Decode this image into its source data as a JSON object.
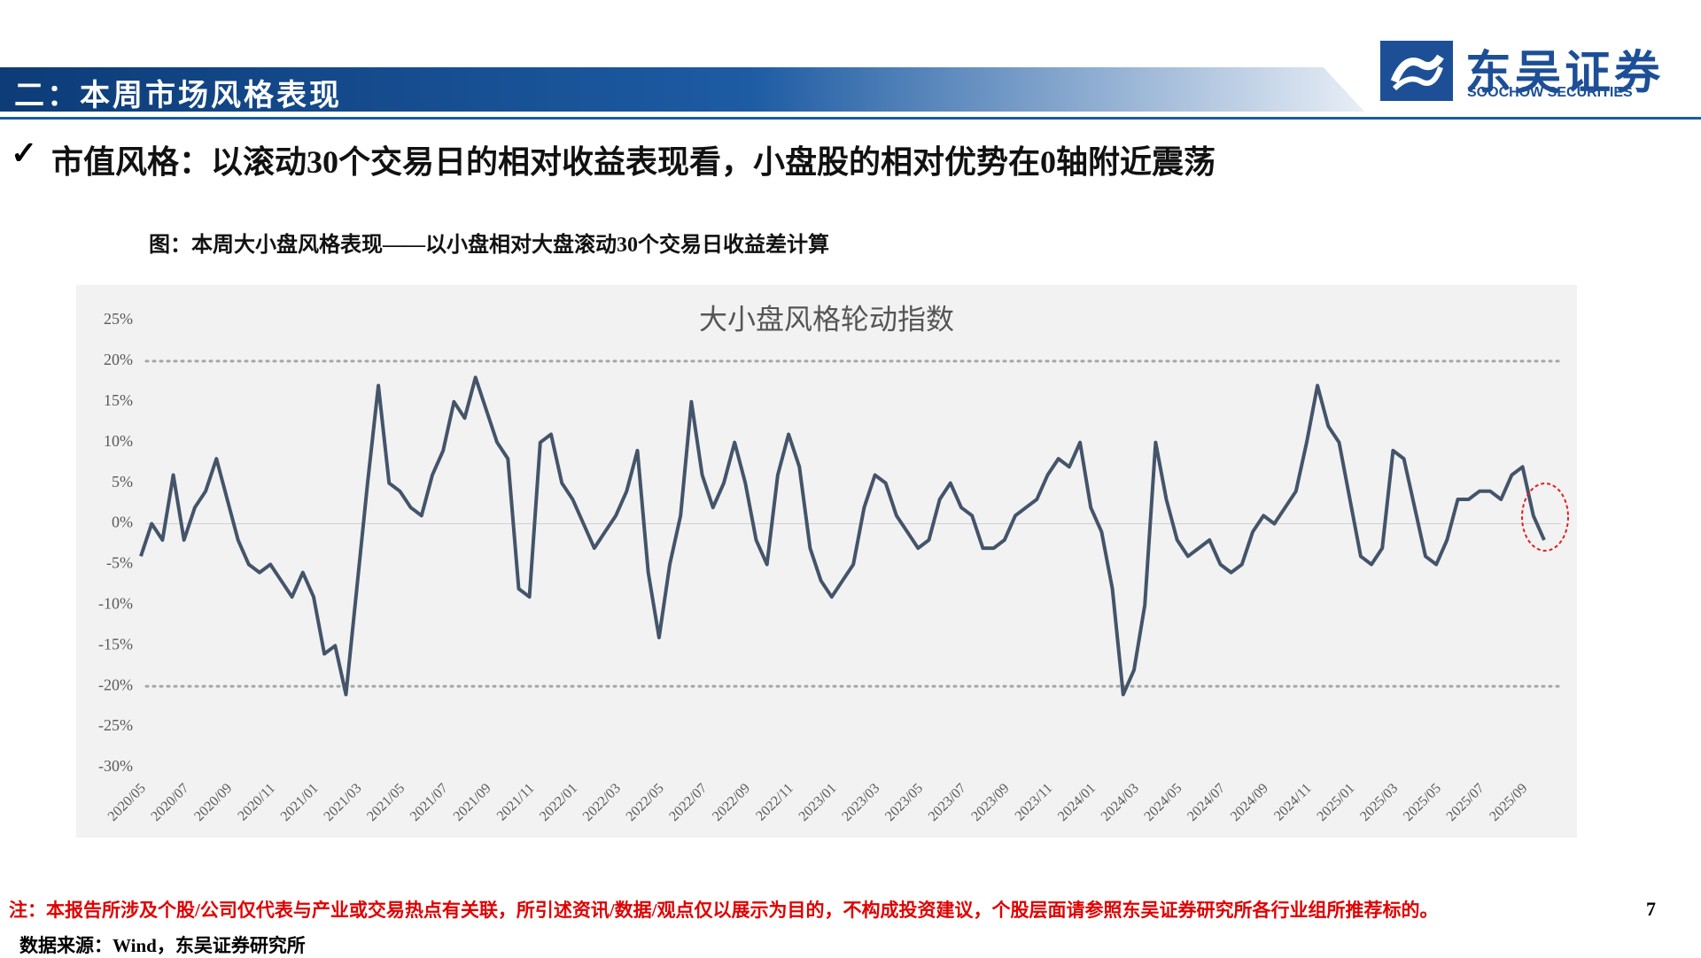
{
  "header": {
    "title": "二：本周市场风格表现",
    "logo_cn": "东吴证券",
    "logo_en": "SOOCHOW SECURITIES"
  },
  "heading": "市值风格：以滚动30个交易日的相对收益表现看，小盘股的相对优势在0轴附近震荡",
  "caption": "图：本周大小盘风格表现——以小盘相对大盘滚动30个交易日收益差计算",
  "chart_data": {
    "type": "line",
    "title": "大小盘风格轮动指数",
    "categories": [
      "2020/05",
      null,
      null,
      null,
      "2020/07",
      null,
      null,
      null,
      "2020/09",
      null,
      null,
      null,
      "2020/11",
      null,
      null,
      null,
      "2021/01",
      null,
      null,
      null,
      "2021/03",
      null,
      null,
      null,
      "2021/05",
      null,
      null,
      null,
      "2021/07",
      null,
      null,
      null,
      "2021/09",
      null,
      null,
      null,
      "2021/11",
      null,
      null,
      null,
      "2022/01",
      null,
      null,
      null,
      "2022/03",
      null,
      null,
      null,
      "2022/05",
      null,
      null,
      null,
      "2022/07",
      null,
      null,
      null,
      "2022/09",
      null,
      null,
      null,
      "2022/11",
      null,
      null,
      null,
      "2023/01",
      null,
      null,
      null,
      "2023/03",
      null,
      null,
      null,
      "2023/05",
      null,
      null,
      null,
      "2023/07",
      null,
      null,
      null,
      "2023/09",
      null,
      null,
      null,
      "2023/11",
      null,
      null,
      null,
      "2024/01",
      null,
      null,
      null,
      "2024/03",
      null,
      null,
      null,
      "2024/05",
      null,
      null,
      null,
      "2024/07",
      null,
      null,
      null,
      "2024/09",
      null,
      null,
      null,
      "2024/11",
      null,
      null,
      null,
      "2025/01",
      null,
      null,
      null,
      "2025/03",
      null,
      null,
      null,
      "2025/05",
      null,
      null,
      null,
      "2025/07",
      null,
      null,
      null,
      "2025/09",
      null,
      null
    ],
    "series": [
      {
        "color": "#44546a",
        "values": [
          -4,
          0,
          -2,
          6,
          -2,
          2,
          4,
          8,
          3,
          -2,
          -5,
          -6,
          -5,
          -7,
          -9,
          -6,
          -9,
          -16,
          -15,
          -21,
          -8,
          5,
          17,
          5,
          4,
          2,
          1,
          6,
          9,
          15,
          13,
          18,
          14,
          10,
          8,
          -8,
          -9,
          10,
          11,
          5,
          3,
          0,
          -3,
          -1,
          1,
          4,
          9,
          -6,
          -14,
          -5,
          1,
          15,
          6,
          2,
          5,
          10,
          5,
          -2,
          -5,
          6,
          11,
          7,
          -3,
          -7,
          -9,
          -7,
          -5,
          2,
          6,
          5,
          1,
          -1,
          -3,
          -2,
          3,
          5,
          2,
          1,
          -3,
          -3,
          -2,
          1,
          2,
          3,
          6,
          8,
          7,
          10,
          2,
          -1,
          -8,
          -21,
          -18,
          -10,
          10,
          3,
          -2,
          -4,
          -3,
          -2,
          -5,
          -6,
          -5,
          -1,
          1,
          0,
          2,
          4,
          10,
          17,
          12,
          10,
          3,
          -4,
          -5,
          -3,
          9,
          8,
          2,
          -4,
          -5,
          -2,
          3,
          3,
          4,
          4,
          3,
          6,
          7,
          1,
          -2
        ]
      }
    ],
    "ylim": [
      -30,
      25
    ],
    "yticks": [
      {
        "value": -30,
        "label": "-30%"
      },
      {
        "value": -25,
        "label": "-25%"
      },
      {
        "value": -20,
        "label": "-20%"
      },
      {
        "value": -15,
        "label": "-15%"
      },
      {
        "value": -10,
        "label": "-10%"
      },
      {
        "value": -5,
        "label": "-5%"
      },
      {
        "value": 0,
        "label": "0%"
      },
      {
        "value": 5,
        "label": "5%"
      },
      {
        "value": 10,
        "label": "10%"
      },
      {
        "value": 15,
        "label": "15%"
      },
      {
        "value": 20,
        "label": "20%"
      },
      {
        "value": 25,
        "label": "25%"
      }
    ],
    "reference_lines": [
      20,
      -20
    ]
  },
  "note": "注：本报告所涉及个股/公司仅代表与产业或交易热点有关联，所引述资讯/数据/观点仅以展示为目的，不构成投资建议，个股层面请参照东吴证券研究所各行业组所推荐标的。",
  "page_number": "7",
  "source": "数据来源：Wind，东吴证券研究所"
}
